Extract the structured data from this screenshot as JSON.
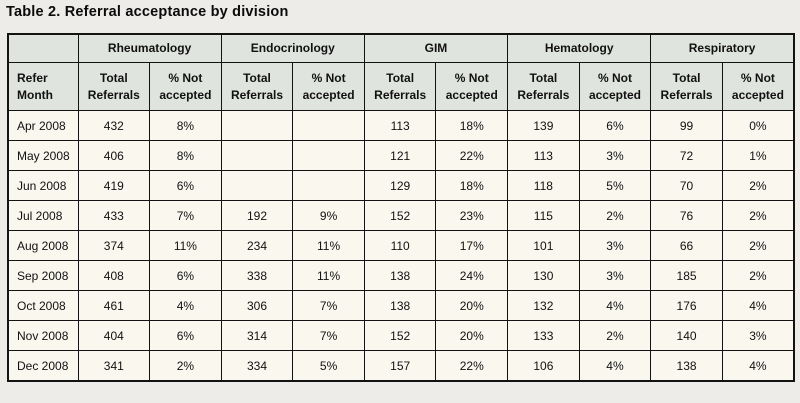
{
  "title": "Table 2. Referral acceptance by division",
  "table": {
    "corner_label": "",
    "row_header": "Refer Month",
    "divisions": [
      "Rheumatology",
      "Endocrinology",
      "GIM",
      "Hematology",
      "Respiratory"
    ],
    "sub_headers": [
      "Total Referrals",
      "% Not accepted"
    ],
    "rows": [
      {
        "month": "Apr 2008",
        "cells": [
          "432",
          "8%",
          "",
          "",
          "113",
          "18%",
          "139",
          "6%",
          "99",
          "0%"
        ]
      },
      {
        "month": "May 2008",
        "cells": [
          "406",
          "8%",
          "",
          "",
          "121",
          "22%",
          "113",
          "3%",
          "72",
          "1%"
        ]
      },
      {
        "month": "Jun 2008",
        "cells": [
          "419",
          "6%",
          "",
          "",
          "129",
          "18%",
          "118",
          "5%",
          "70",
          "2%"
        ]
      },
      {
        "month": "Jul 2008",
        "cells": [
          "433",
          "7%",
          "192",
          "9%",
          "152",
          "23%",
          "115",
          "2%",
          "76",
          "2%"
        ]
      },
      {
        "month": "Aug 2008",
        "cells": [
          "374",
          "11%",
          "234",
          "11%",
          "110",
          "17%",
          "101",
          "3%",
          "66",
          "2%"
        ]
      },
      {
        "month": "Sep 2008",
        "cells": [
          "408",
          "6%",
          "338",
          "11%",
          "138",
          "24%",
          "130",
          "3%",
          "185",
          "2%"
        ]
      },
      {
        "month": "Oct 2008",
        "cells": [
          "461",
          "4%",
          "306",
          "7%",
          "138",
          "20%",
          "132",
          "4%",
          "176",
          "4%"
        ]
      },
      {
        "month": "Nov 2008",
        "cells": [
          "404",
          "6%",
          "314",
          "7%",
          "152",
          "20%",
          "133",
          "2%",
          "140",
          "3%"
        ]
      },
      {
        "month": "Dec 2008",
        "cells": [
          "341",
          "2%",
          "334",
          "5%",
          "157",
          "22%",
          "106",
          "4%",
          "138",
          "4%"
        ]
      }
    ],
    "colors": {
      "header_bg": "#e0e4df",
      "body_bg": "#f9f7ee",
      "border": "#131313",
      "page_bg": "#edece8"
    }
  },
  "chart_data": {
    "type": "table",
    "title": "Table 2. Referral acceptance by division",
    "columns": [
      "Refer Month",
      "Rheumatology Total Referrals",
      "Rheumatology % Not accepted",
      "Endocrinology Total Referrals",
      "Endocrinology % Not accepted",
      "GIM Total Referrals",
      "GIM % Not accepted",
      "Hematology Total Referrals",
      "Hematology % Not accepted",
      "Respiratory Total Referrals",
      "Respiratory % Not accepted"
    ],
    "rows": [
      [
        "Apr 2008",
        "432",
        "8%",
        "",
        "",
        "113",
        "18%",
        "139",
        "6%",
        "99",
        "0%"
      ],
      [
        "May 2008",
        "406",
        "8%",
        "",
        "",
        "121",
        "22%",
        "113",
        "3%",
        "72",
        "1%"
      ],
      [
        "Jun 2008",
        "419",
        "6%",
        "",
        "",
        "129",
        "18%",
        "118",
        "5%",
        "70",
        "2%"
      ],
      [
        "Jul 2008",
        "433",
        "7%",
        "192",
        "9%",
        "152",
        "23%",
        "115",
        "2%",
        "76",
        "2%"
      ],
      [
        "Aug 2008",
        "374",
        "11%",
        "234",
        "11%",
        "110",
        "17%",
        "101",
        "3%",
        "66",
        "2%"
      ],
      [
        "Sep 2008",
        "408",
        "6%",
        "338",
        "11%",
        "138",
        "24%",
        "130",
        "3%",
        "185",
        "2%"
      ],
      [
        "Oct 2008",
        "461",
        "4%",
        "306",
        "7%",
        "138",
        "20%",
        "132",
        "4%",
        "176",
        "4%"
      ],
      [
        "Nov 2008",
        "404",
        "6%",
        "314",
        "7%",
        "152",
        "20%",
        "133",
        "2%",
        "140",
        "3%"
      ],
      [
        "Dec 2008",
        "341",
        "2%",
        "334",
        "5%",
        "157",
        "22%",
        "106",
        "4%",
        "138",
        "4%"
      ]
    ]
  }
}
